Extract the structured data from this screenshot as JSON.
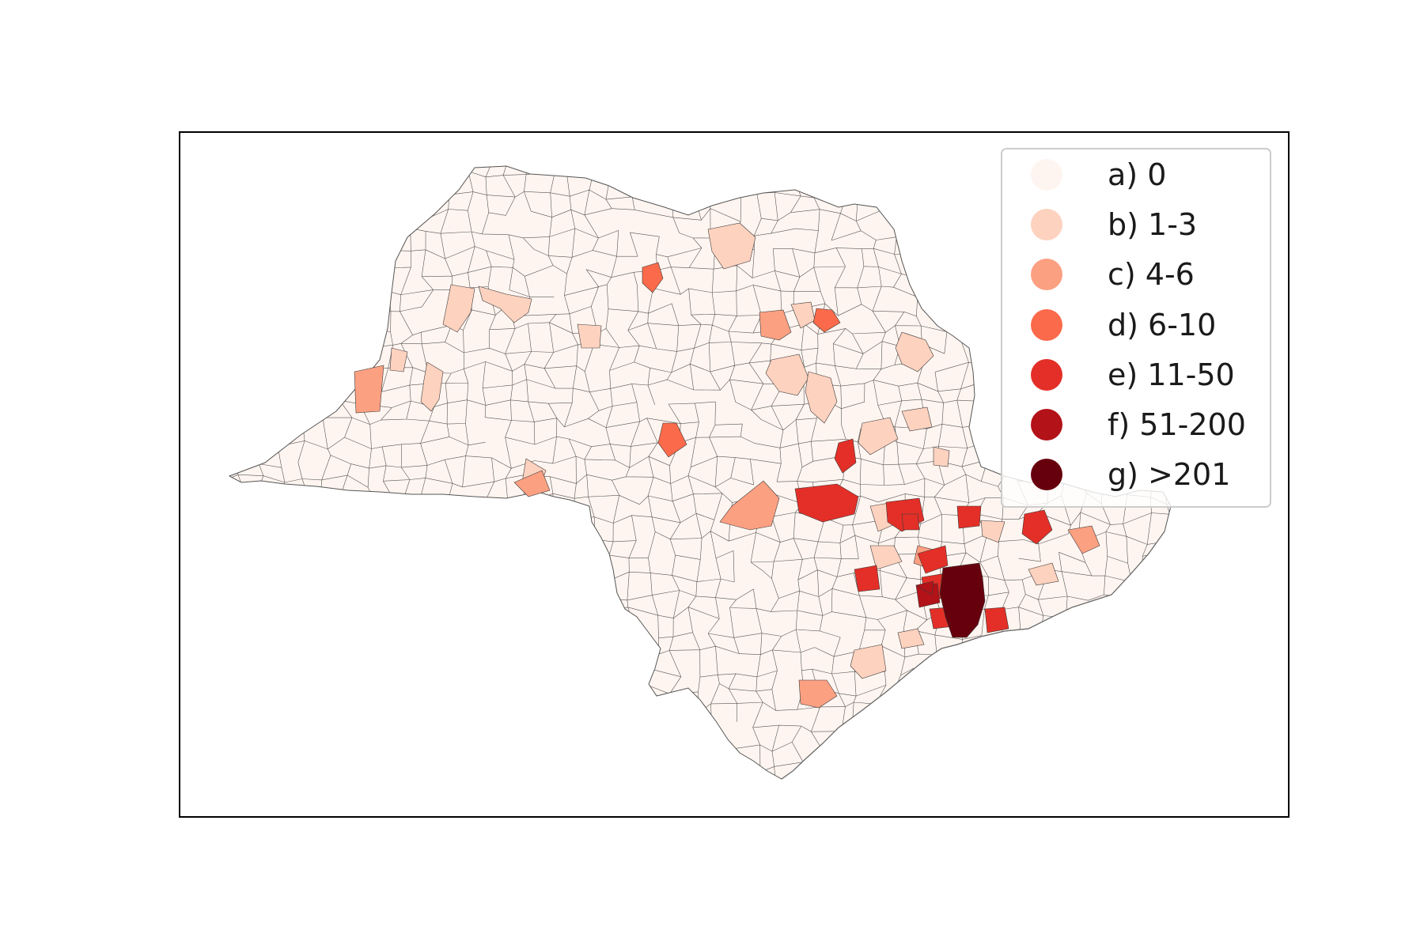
{
  "map": {
    "region": "São Paulo",
    "colors": {
      "a": "#fff5f0",
      "b": "#fdd2bf",
      "c": "#fca082",
      "d": "#fb6a4a",
      "e": "#e32f27",
      "f": "#b21218",
      "g": "#67000d"
    }
  },
  "legend": {
    "items": [
      {
        "key": "a",
        "label": "a) 0",
        "color": "#fff5f0"
      },
      {
        "key": "b",
        "label": "b) 1-3",
        "color": "#fdd2bf"
      },
      {
        "key": "c",
        "label": "c) 4-6",
        "color": "#fca082"
      },
      {
        "key": "d",
        "label": "d) 6-10",
        "color": "#fb6a4a"
      },
      {
        "key": "e",
        "label": "e) 11-50",
        "color": "#e32f27"
      },
      {
        "key": "f",
        "label": "f) 51-200",
        "color": "#b21218"
      },
      {
        "key": "g",
        "label": "g) >201",
        "color": "#67000d"
      }
    ]
  }
}
